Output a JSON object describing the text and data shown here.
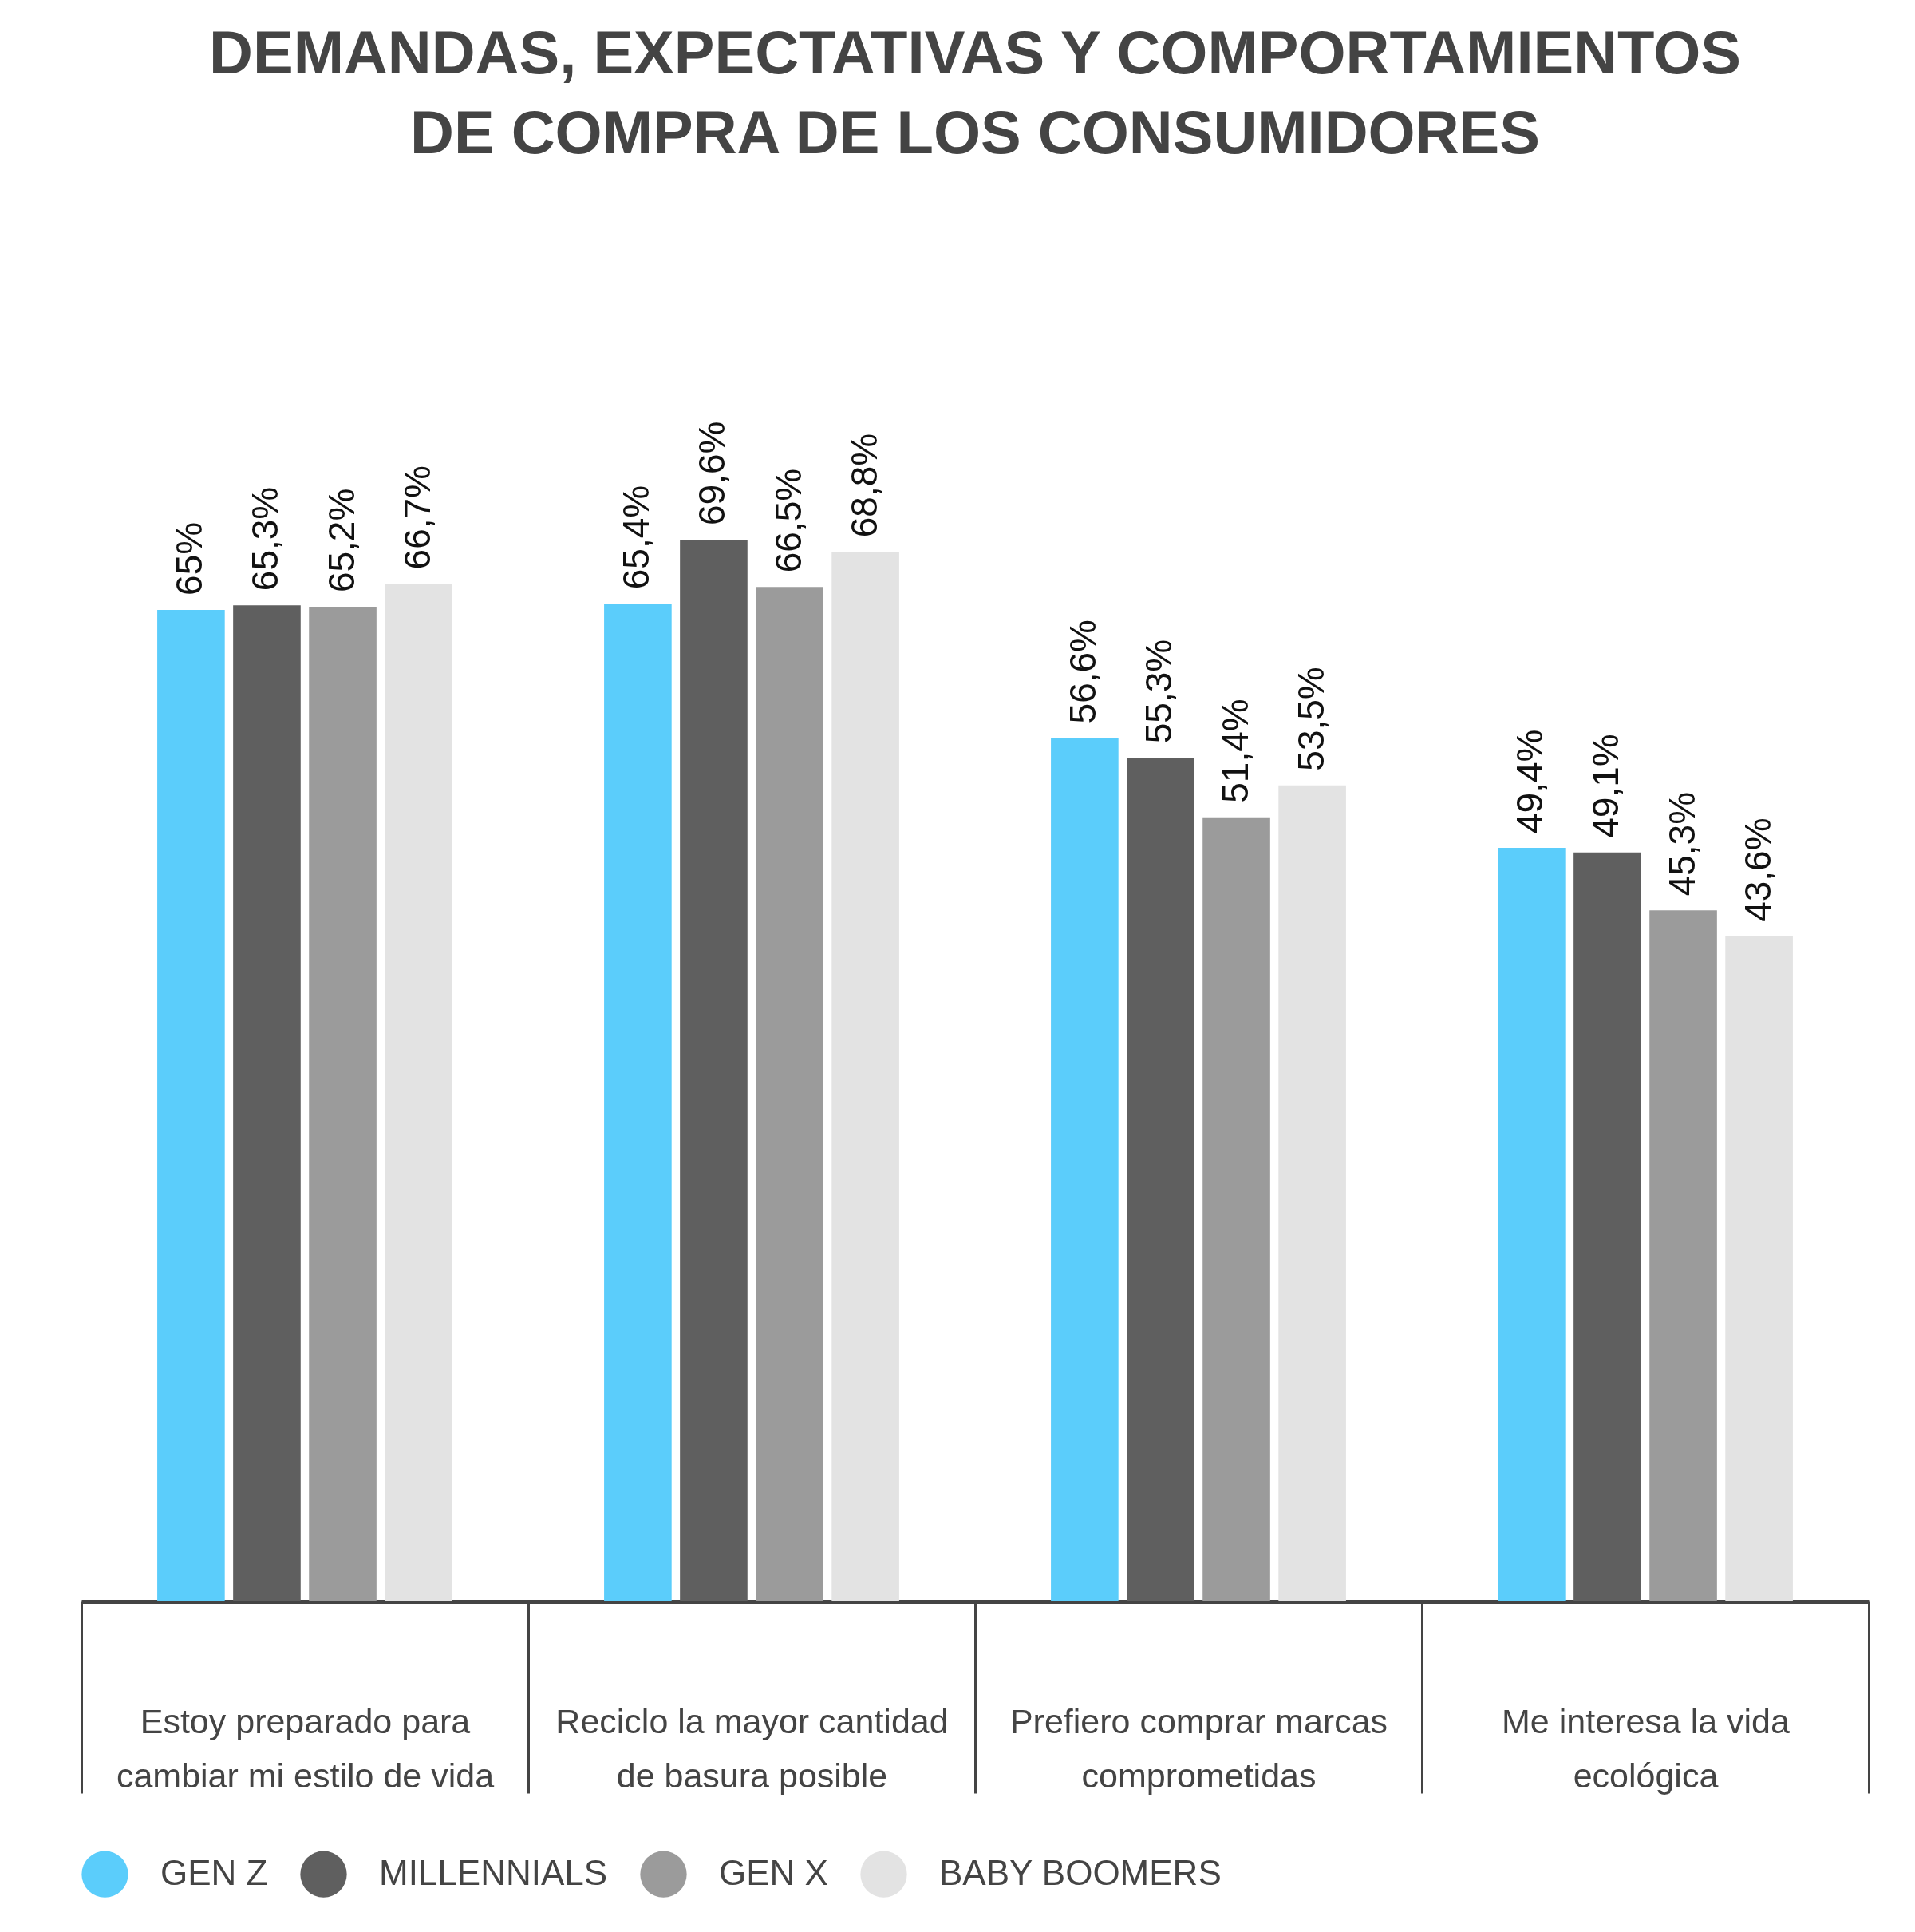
{
  "chart_data": {
    "type": "bar",
    "title": "DEMANDAS, EXPECTATIVAS Y COMPORTAMIENTOS DE COMPRA DE LOS CONSUMIDORES",
    "categories": [
      "Estoy preparado para cambiar mi estilo de vida",
      "Reciclo la mayor cantidad de basura posible",
      "Prefiero comprar marcas comprometidas",
      "Me interesa la vida ecológica"
    ],
    "series": [
      {
        "name": "GEN Z",
        "color": "#5bcdfb",
        "values": [
          65,
          65.4,
          56.6,
          49.4
        ],
        "value_labels": [
          "65%",
          "65,4%",
          "56,6%",
          "49,4%"
        ]
      },
      {
        "name": "MILLENNIALS",
        "color": "#5f5f5f",
        "values": [
          65.3,
          69.6,
          55.3,
          49.1
        ],
        "value_labels": [
          "65,3%",
          "69,6%",
          "55,3%",
          "49,1%"
        ]
      },
      {
        "name": "GEN X",
        "color": "#9b9b9b",
        "values": [
          65.2,
          66.5,
          51.4,
          45.3
        ],
        "value_labels": [
          "65,2%",
          "66,5%",
          "51,4%",
          "45,3%"
        ]
      },
      {
        "name": "BABY BOOMERS",
        "color": "#e3e3e3",
        "values": [
          66.7,
          68.8,
          53.5,
          43.6
        ],
        "value_labels": [
          "66,7%",
          "68,8%",
          "53,5%",
          "43,6%"
        ]
      }
    ],
    "legend": "bottom",
    "grid": false
  }
}
